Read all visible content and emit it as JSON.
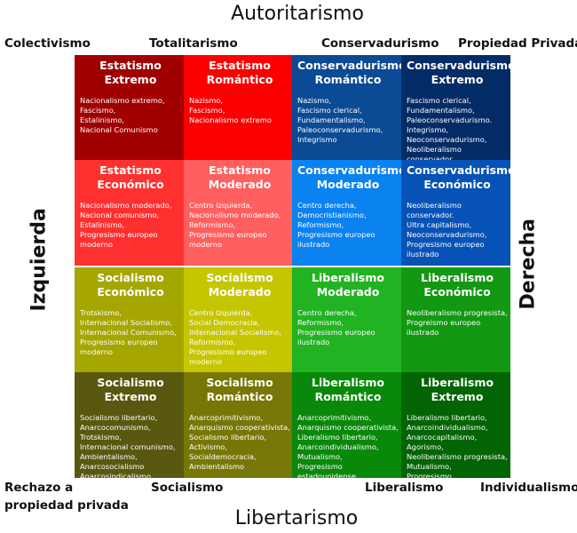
{
  "axes": {
    "top": "Autoritarismo",
    "bottom": "Libertarismo",
    "left": "Izquierda",
    "right": "Derecha"
  },
  "top_labels": [
    "Colectivismo",
    "Totalitarismo",
    "Conservadurismo",
    "Propiedad Privada"
  ],
  "bottom_labels": {
    "left_line1": "Rechazo a",
    "left_line2": "propiedad privada",
    "socialismo": "Socialismo",
    "liberalismo": "Liberalismo",
    "individualismo": "Individualismo"
  },
  "quadrants": [
    {
      "name": "Estatismo",
      "cells": [
        {
          "title": "Estatismo Extremo",
          "items": "Nacionalismo extremo,\nFascismo,\nEstalinismo,\nNacional Comunismo",
          "color": "#a00000"
        },
        {
          "title": "Estatismo Romántico",
          "items": "Nazismo,\nFascismo,\nNacionalismo extremo",
          "color": "#fa0000"
        },
        {
          "title": "Estatismo Económico",
          "items": "Nacionalismo moderado,\nNacional comunismo,\nEstalinismo,\nProgresismo europeo\nmoderno",
          "color": "#ff3030"
        },
        {
          "title": "Estatismo Moderado",
          "items": "Centro izquierda,\nNacionalismo moderado,\nReformismo,\nProgresismo europeo\nmoderno",
          "color": "#ff5f5f"
        }
      ]
    },
    {
      "name": "Conservadurismo",
      "cells": [
        {
          "title": "Conservadurismo Romántico",
          "items": "Nazismo,\nFascismo clerical,\nFundamentalismo,\nPaleoconservadurismo,\nIntegrismo",
          "color": "#0b4a94"
        },
        {
          "title": "Conservadurismo Extremo",
          "items": "Fascismo clerical,\nFundamentalismo,\nPaleoconservadurismo.\nIntegrismo,\nNeoconservadurismo,\nNeoliberalismo conservador",
          "color": "#032c66"
        },
        {
          "title": "Conservadurismo Moderado",
          "items": "Centro derecha,\nDemocristianismo,\nReformismo,\nProgresismo europeo\nilustrado",
          "color": "#0a82f0"
        },
        {
          "title": "Conservadurismo Económico",
          "items": "Neoliberalismo conservador.\nUltra capitalismo,\nNeoconservadurismo,\nProgresismo europeo\nilustrado",
          "color": "#0752b6"
        }
      ]
    },
    {
      "name": "Socialismo",
      "cells": [
        {
          "title": "Socialismo Económico",
          "items": "Trotskismo,\nInternacional Socialismo,\nInternacional Comunismo,\nProgresismo europeo\nmoderno",
          "color": "#a6a600"
        },
        {
          "title": "Socialismo Moderado",
          "items": "Centro Izquierda,\nSocial Democracia,\nInternacional Socialismo,\nReformismo,\nProgresismo europeo\nmoderno",
          "color": "#c6c600"
        },
        {
          "title": "Socialismo Extremo",
          "items": "Socialismo libertario,\nAnarcocomunismo,\nTrotskismo,\nInternacional comunismo,\nAmbientalismo,\nAnarcosocialismo\nAnarcosindicalismo\nAnarcoprimitivismo",
          "color": "#585810"
        },
        {
          "title": "Socialismo Romántico",
          "items": "Anarcoprimitivismo,\nAnarquismo cooperativista,\nSocialismo libertario,\nActivismo,\nSocialdemocracia,\nAmbientalismo",
          "color": "#777708"
        }
      ]
    },
    {
      "name": "Liberalismo",
      "cells": [
        {
          "title": "Liberalismo Moderado",
          "items": "Centro derecha,\nReformismo,\nProgresismo europeo\nilustrado",
          "color": "#22b322"
        },
        {
          "title": "Liberalismo Económico",
          "items": "Neoliberalismo progresista,\nProgreismo europeo\nilustrado",
          "color": "#139813"
        },
        {
          "title": "Liberalismo Romántico",
          "items": "Anarcoprimitivismo,\nAnarquismo cooperativista,\nLiberalismo libertario,\nAnarcoindividualismo,\nMutualismo,\nProgresismo estadounidense",
          "color": "#0a880a"
        },
        {
          "title": "Liberalismo Extremo",
          "items": "Liberalismo libertario,\nAnarcoindividualismo,\nAnarcocapitalismo,\nAgorismo,\nNeoliberalismo progresista,\nMutualismo,\nProgresismo estadounidense",
          "color": "#036403"
        }
      ]
    }
  ]
}
